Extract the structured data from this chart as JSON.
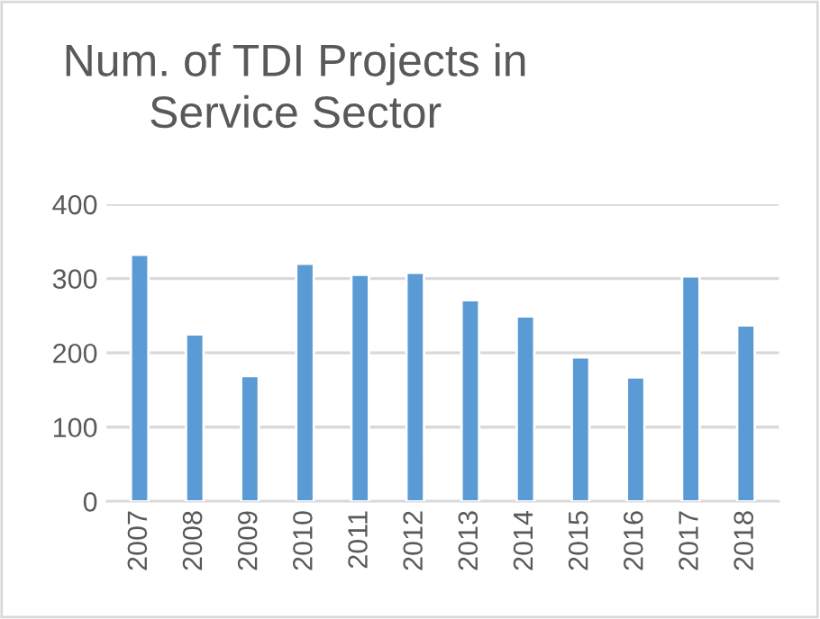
{
  "chart_data": {
    "type": "bar",
    "title": "Num. of TDI Projects in\nService Sector",
    "categories": [
      "2007",
      "2008",
      "2009",
      "2010",
      "2011",
      "2012",
      "2013",
      "2014",
      "2015",
      "2016",
      "2017",
      "2018"
    ],
    "values": [
      332,
      225,
      169,
      320,
      305,
      308,
      271,
      249,
      194,
      167,
      303,
      237
    ],
    "color": "#5b9bd5",
    "ylim": [
      0,
      400
    ],
    "yticks": [
      0,
      100,
      200,
      300,
      400
    ],
    "grid": "y",
    "legend": false
  }
}
